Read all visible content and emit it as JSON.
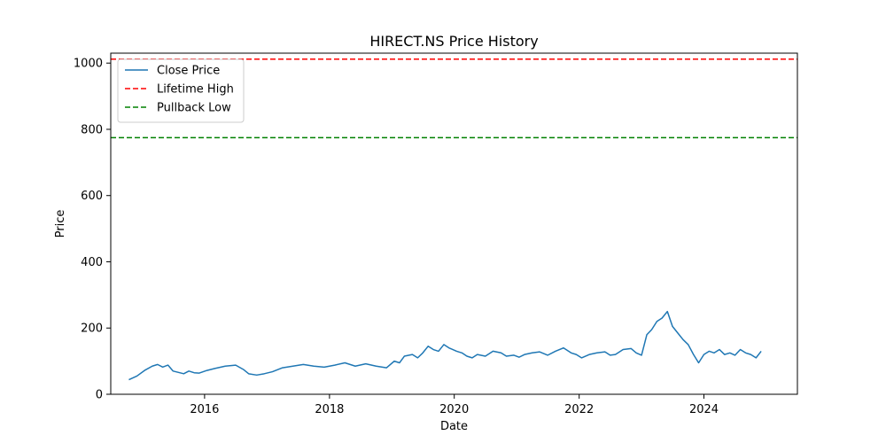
{
  "chart_data": {
    "type": "line",
    "title": "HIRECT.NS Price History",
    "xlabel": "Date",
    "ylabel": "Price",
    "xlim": [
      "2014-07-01",
      "2025-07-01"
    ],
    "ylim": [
      0,
      1030
    ],
    "x_ticks": [
      {
        "date": "2016-01-01",
        "label": "2016"
      },
      {
        "date": "2018-01-01",
        "label": "2018"
      },
      {
        "date": "2020-01-01",
        "label": "2020"
      },
      {
        "date": "2022-01-01",
        "label": "2022"
      },
      {
        "date": "2024-01-01",
        "label": "2024"
      }
    ],
    "y_ticks": [
      0,
      200,
      400,
      600,
      800,
      1000
    ],
    "grid": false,
    "legend_position": "upper-left",
    "series": [
      {
        "name": "Close Price",
        "color": "#1f77b4",
        "points": [
          [
            "2014-10-15",
            44
          ],
          [
            "2014-12-01",
            55
          ],
          [
            "2015-01-15",
            72
          ],
          [
            "2015-03-01",
            85
          ],
          [
            "2015-04-01",
            90
          ],
          [
            "2015-05-01",
            82
          ],
          [
            "2015-06-01",
            88
          ],
          [
            "2015-07-01",
            70
          ],
          [
            "2015-08-01",
            66
          ],
          [
            "2015-09-01",
            62
          ],
          [
            "2015-10-01",
            70
          ],
          [
            "2015-11-01",
            65
          ],
          [
            "2015-12-01",
            64
          ],
          [
            "2016-01-15",
            72
          ],
          [
            "2016-03-01",
            78
          ],
          [
            "2016-05-01",
            85
          ],
          [
            "2016-07-01",
            88
          ],
          [
            "2016-08-15",
            75
          ],
          [
            "2016-09-15",
            62
          ],
          [
            "2016-11-01",
            58
          ],
          [
            "2016-12-15",
            62
          ],
          [
            "2017-02-01",
            68
          ],
          [
            "2017-04-01",
            80
          ],
          [
            "2017-06-01",
            85
          ],
          [
            "2017-08-01",
            90
          ],
          [
            "2017-10-01",
            85
          ],
          [
            "2017-12-01",
            82
          ],
          [
            "2018-02-01",
            88
          ],
          [
            "2018-04-01",
            95
          ],
          [
            "2018-06-01",
            85
          ],
          [
            "2018-08-01",
            92
          ],
          [
            "2018-10-01",
            85
          ],
          [
            "2018-12-01",
            80
          ],
          [
            "2019-01-15",
            100
          ],
          [
            "2019-02-15",
            95
          ],
          [
            "2019-03-15",
            115
          ],
          [
            "2019-05-01",
            120
          ],
          [
            "2019-06-01",
            110
          ],
          [
            "2019-07-01",
            125
          ],
          [
            "2019-08-01",
            145
          ],
          [
            "2019-09-01",
            135
          ],
          [
            "2019-10-01",
            130
          ],
          [
            "2019-11-01",
            150
          ],
          [
            "2019-12-01",
            140
          ],
          [
            "2020-01-15",
            130
          ],
          [
            "2020-02-15",
            125
          ],
          [
            "2020-03-15",
            115
          ],
          [
            "2020-04-15",
            110
          ],
          [
            "2020-05-15",
            120
          ],
          [
            "2020-07-01",
            115
          ],
          [
            "2020-08-15",
            130
          ],
          [
            "2020-10-01",
            125
          ],
          [
            "2020-11-01",
            115
          ],
          [
            "2020-12-15",
            118
          ],
          [
            "2021-01-15",
            112
          ],
          [
            "2021-02-15",
            120
          ],
          [
            "2021-04-01",
            125
          ],
          [
            "2021-05-15",
            128
          ],
          [
            "2021-07-01",
            118
          ],
          [
            "2021-08-15",
            130
          ],
          [
            "2021-10-01",
            140
          ],
          [
            "2021-11-15",
            125
          ],
          [
            "2021-12-15",
            120
          ],
          [
            "2022-01-15",
            110
          ],
          [
            "2022-03-01",
            120
          ],
          [
            "2022-04-15",
            125
          ],
          [
            "2022-06-01",
            128
          ],
          [
            "2022-07-01",
            118
          ],
          [
            "2022-08-01",
            120
          ],
          [
            "2022-09-15",
            135
          ],
          [
            "2022-11-01",
            138
          ],
          [
            "2022-12-01",
            125
          ],
          [
            "2023-01-01",
            118
          ],
          [
            "2023-02-01",
            180
          ],
          [
            "2023-03-01",
            195
          ],
          [
            "2023-04-01",
            220
          ],
          [
            "2023-05-01",
            230
          ],
          [
            "2023-06-01",
            250
          ],
          [
            "2023-07-01",
            205
          ],
          [
            "2023-08-01",
            185
          ],
          [
            "2023-09-01",
            165
          ],
          [
            "2023-10-01",
            150
          ],
          [
            "2023-11-01",
            120
          ],
          [
            "2023-12-01",
            95
          ],
          [
            "2024-01-01",
            120
          ],
          [
            "2024-02-01",
            130
          ],
          [
            "2024-03-01",
            125
          ],
          [
            "2024-04-01",
            135
          ],
          [
            "2024-05-01",
            120
          ],
          [
            "2024-06-01",
            125
          ],
          [
            "2024-07-01",
            118
          ],
          [
            "2024-08-01",
            135
          ],
          [
            "2024-09-01",
            125
          ],
          [
            "2024-10-01",
            120
          ],
          [
            "2024-11-01",
            110
          ],
          [
            "2024-12-01",
            130
          ]
        ]
      },
      {
        "name": "Lifetime High",
        "color": "#ff0000",
        "style": "dashed",
        "value": 1012
      },
      {
        "name": "Pullback Low",
        "color": "#008000",
        "style": "dashed",
        "value": 775
      }
    ]
  }
}
